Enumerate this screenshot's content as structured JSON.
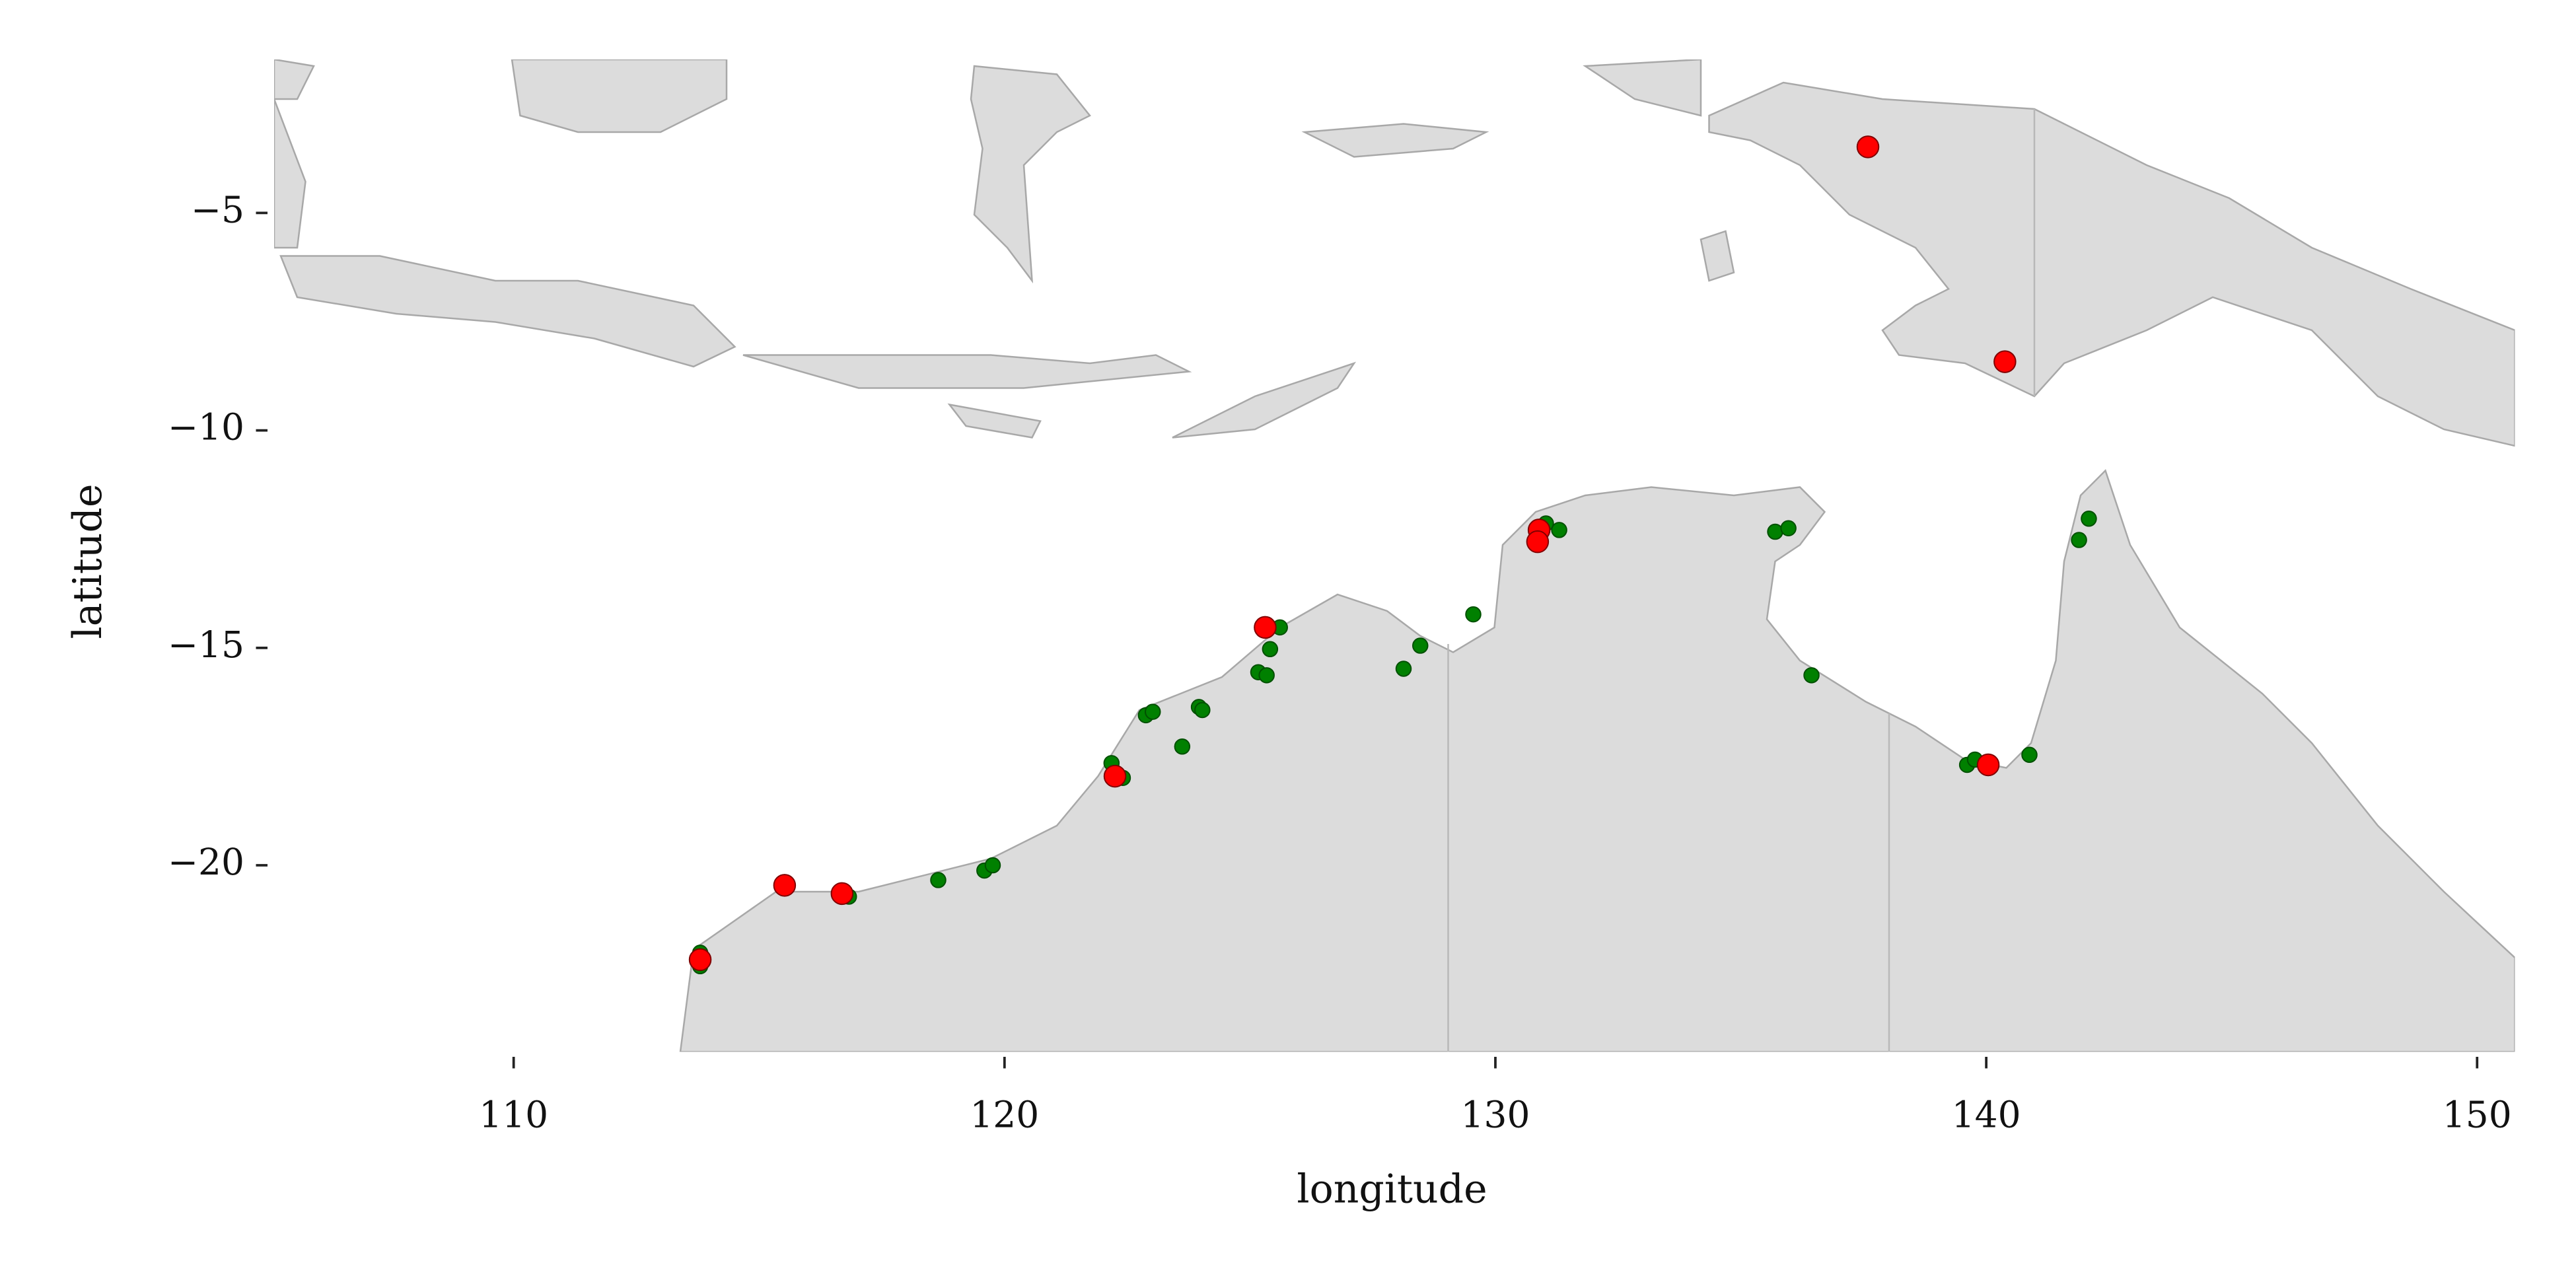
{
  "chart_data": {
    "type": "scatter",
    "xlabel": "longitude",
    "ylabel": "latitude",
    "xlim": [
      105.12,
      150.77
    ],
    "ylim": [
      -24.29,
      -1.47
    ],
    "xticks": [
      110,
      120,
      130,
      140,
      150
    ],
    "yticks": [
      {
        "value": -5,
        "label": "−5"
      },
      {
        "value": -10,
        "label": "−10"
      },
      {
        "value": -15,
        "label": "−15"
      },
      {
        "value": -20,
        "label": "−20"
      }
    ],
    "grid": false,
    "series": [
      {
        "color": "#008000",
        "edgecolor": "#005000",
        "x": [
          113.8,
          113.8,
          116.83,
          118.65,
          119.59,
          119.76,
          122.18,
          122.41,
          122.88,
          123.02,
          123.62,
          123.96,
          124.03,
          125.17,
          125.34,
          125.41,
          125.61,
          128.13,
          128.47,
          129.55,
          131.03,
          131.3,
          135.7,
          135.97,
          136.44,
          139.61,
          139.77,
          140.88,
          141.89,
          142.09
        ],
        "y": [
          -22.01,
          -22.32,
          -20.72,
          -20.34,
          -20.12,
          -20.0,
          -17.65,
          -17.99,
          -16.55,
          -16.47,
          -17.27,
          -16.36,
          -16.43,
          -15.56,
          -15.63,
          -15.03,
          -14.53,
          -15.48,
          -14.95,
          -14.23,
          -12.14,
          -12.29,
          -12.33,
          -12.25,
          -15.63,
          -17.69,
          -17.57,
          -17.46,
          -12.52,
          -12.03
        ]
      },
      {
        "color": "#ff0000",
        "edgecolor": "#800000",
        "x": [
          137.59,
          140.38,
          130.89,
          130.86,
          125.31,
          122.25,
          115.52,
          116.69,
          113.8,
          140.04
        ],
        "y": [
          -3.48,
          -8.42,
          -12.29,
          -12.56,
          -14.53,
          -17.95,
          -20.46,
          -20.65,
          -22.17,
          -17.69
        ]
      }
    ]
  }
}
